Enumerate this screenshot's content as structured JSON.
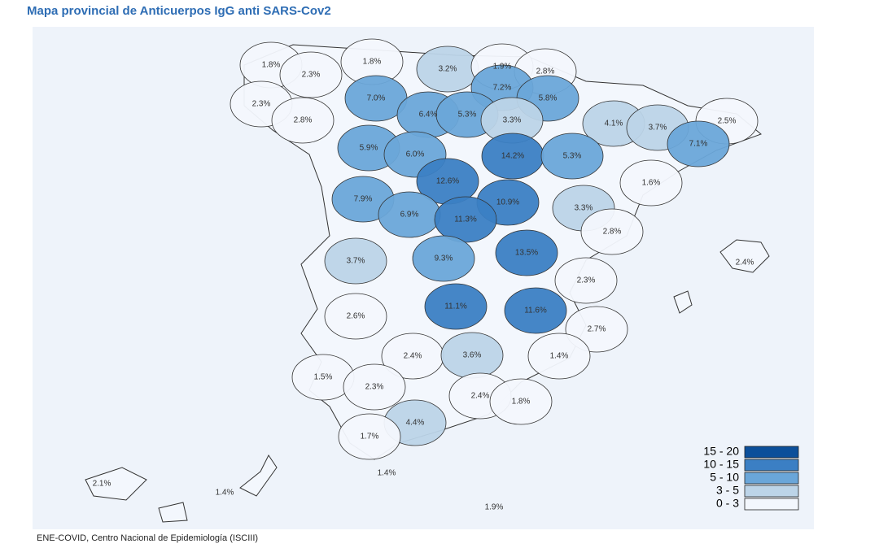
{
  "header": {
    "title": "Mapa provincial de Anticuerpos IgG anti SARS-Cov2"
  },
  "footer": {
    "source": "ENE-COVID, Centro Nacional de Epidemiología (ISCIII)"
  },
  "legend": [
    {
      "label": "15 - 20",
      "color": "#0c4f9a"
    },
    {
      "label": "10 - 15",
      "color": "#3b7fc4"
    },
    {
      "label": "5 - 10",
      "color": "#6aa6d9"
    },
    {
      "label": "3 - 5",
      "color": "#bcd4e8"
    },
    {
      "label": "0 - 3",
      "color": "#f3f7fd"
    }
  ],
  "regions": [
    {
      "label": "1.8%",
      "color": "#f3f7fd"
    },
    {
      "label": "2.3%",
      "color": "#f3f7fd"
    },
    {
      "label": "1.8%",
      "color": "#f3f7fd"
    },
    {
      "label": "3.2%",
      "color": "#bcd4e8"
    },
    {
      "label": "1.9%",
      "color": "#f3f7fd"
    },
    {
      "label": "2.8%",
      "color": "#f3f7fd"
    },
    {
      "label": "7.2%",
      "color": "#6aa6d9"
    },
    {
      "label": "7.0%",
      "color": "#6aa6d9"
    },
    {
      "label": "6.4%",
      "color": "#6aa6d9"
    },
    {
      "label": "5.3%",
      "color": "#6aa6d9"
    },
    {
      "label": "5.8%",
      "color": "#6aa6d9"
    },
    {
      "label": "3.3%",
      "color": "#bcd4e8"
    },
    {
      "label": "4.1%",
      "color": "#bcd4e8"
    },
    {
      "label": "3.7%",
      "color": "#bcd4e8"
    },
    {
      "label": "2.5%",
      "color": "#f3f7fd"
    },
    {
      "label": "2.3%",
      "color": "#f3f7fd"
    },
    {
      "label": "2.8%",
      "color": "#f3f7fd"
    },
    {
      "label": "5.9%",
      "color": "#6aa6d9"
    },
    {
      "label": "6.0%",
      "color": "#6aa6d9"
    },
    {
      "label": "14.2%",
      "color": "#3b7fc4"
    },
    {
      "label": "5.3%",
      "color": "#6aa6d9"
    },
    {
      "label": "7.1%",
      "color": "#6aa6d9"
    },
    {
      "label": "12.6%",
      "color": "#3b7fc4"
    },
    {
      "label": "10.9%",
      "color": "#3b7fc4"
    },
    {
      "label": "1.6%",
      "color": "#f3f7fd"
    },
    {
      "label": "7.9%",
      "color": "#6aa6d9"
    },
    {
      "label": "6.9%",
      "color": "#6aa6d9"
    },
    {
      "label": "11.3%",
      "color": "#3b7fc4"
    },
    {
      "label": "3.3%",
      "color": "#bcd4e8"
    },
    {
      "label": "2.8%",
      "color": "#f3f7fd"
    },
    {
      "label": "13.5%",
      "color": "#3b7fc4"
    },
    {
      "label": "3.7%",
      "color": "#bcd4e8"
    },
    {
      "label": "9.3%",
      "color": "#6aa6d9"
    },
    {
      "label": "2.4%",
      "color": "#f3f7fd"
    },
    {
      "label": "2.3%",
      "color": "#f3f7fd"
    },
    {
      "label": "2.6%",
      "color": "#f3f7fd"
    },
    {
      "label": "11.1%",
      "color": "#3b7fc4"
    },
    {
      "label": "11.6%",
      "color": "#3b7fc4"
    },
    {
      "label": "2.7%",
      "color": "#f3f7fd"
    },
    {
      "label": "2.4%",
      "color": "#f3f7fd"
    },
    {
      "label": "3.6%",
      "color": "#bcd4e8"
    },
    {
      "label": "1.4%",
      "color": "#f3f7fd"
    },
    {
      "label": "1.5%",
      "color": "#f3f7fd"
    },
    {
      "label": "2.3%",
      "color": "#f3f7fd"
    },
    {
      "label": "2.4%",
      "color": "#f3f7fd"
    },
    {
      "label": "1.8%",
      "color": "#f3f7fd"
    },
    {
      "label": "4.4%",
      "color": "#bcd4e8"
    },
    {
      "label": "1.7%",
      "color": "#f3f7fd"
    },
    {
      "label": "1.4%",
      "color": "#f3f7fd"
    },
    {
      "label": "2.1%",
      "color": "#f3f7fd"
    },
    {
      "label": "1.4%",
      "color": "#f3f7fd"
    },
    {
      "label": "1.9%",
      "color": "#f3f7fd"
    }
  ]
}
